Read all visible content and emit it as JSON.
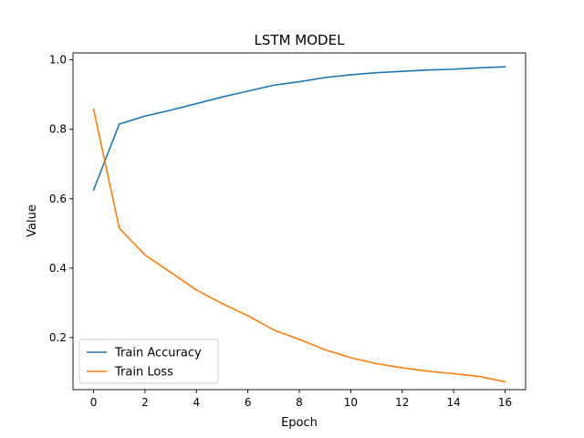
{
  "chart_data": {
    "type": "line",
    "title": "LSTM MODEL",
    "xlabel": "Epoch",
    "ylabel": "Value",
    "xlim": [
      -0.8,
      16.8
    ],
    "ylim": [
      0.05,
      1.02
    ],
    "xticks": [
      0,
      2,
      4,
      6,
      8,
      10,
      12,
      14,
      16
    ],
    "yticks": [
      0.2,
      0.4,
      0.6,
      0.8,
      1.0
    ],
    "ytick_labels": [
      "0.2",
      "0.4",
      "0.6",
      "0.8",
      "1.0"
    ],
    "grid": false,
    "legend_position": "bottom-left",
    "x": [
      0,
      1,
      2,
      3,
      4,
      5,
      6,
      7,
      8,
      9,
      10,
      11,
      12,
      13,
      14,
      15,
      16
    ],
    "series": [
      {
        "name": "Train Accuracy",
        "color": "#1f77b4",
        "values": [
          0.625,
          0.815,
          0.838,
          0.855,
          0.874,
          0.893,
          0.91,
          0.927,
          0.937,
          0.949,
          0.957,
          0.963,
          0.967,
          0.971,
          0.973,
          0.977,
          0.98
        ]
      },
      {
        "name": "Train Loss",
        "color": "#ff7f0e",
        "values": [
          0.858,
          0.515,
          0.438,
          0.388,
          0.337,
          0.298,
          0.263,
          0.222,
          0.195,
          0.165,
          0.142,
          0.125,
          0.113,
          0.103,
          0.096,
          0.088,
          0.073
        ]
      }
    ]
  }
}
